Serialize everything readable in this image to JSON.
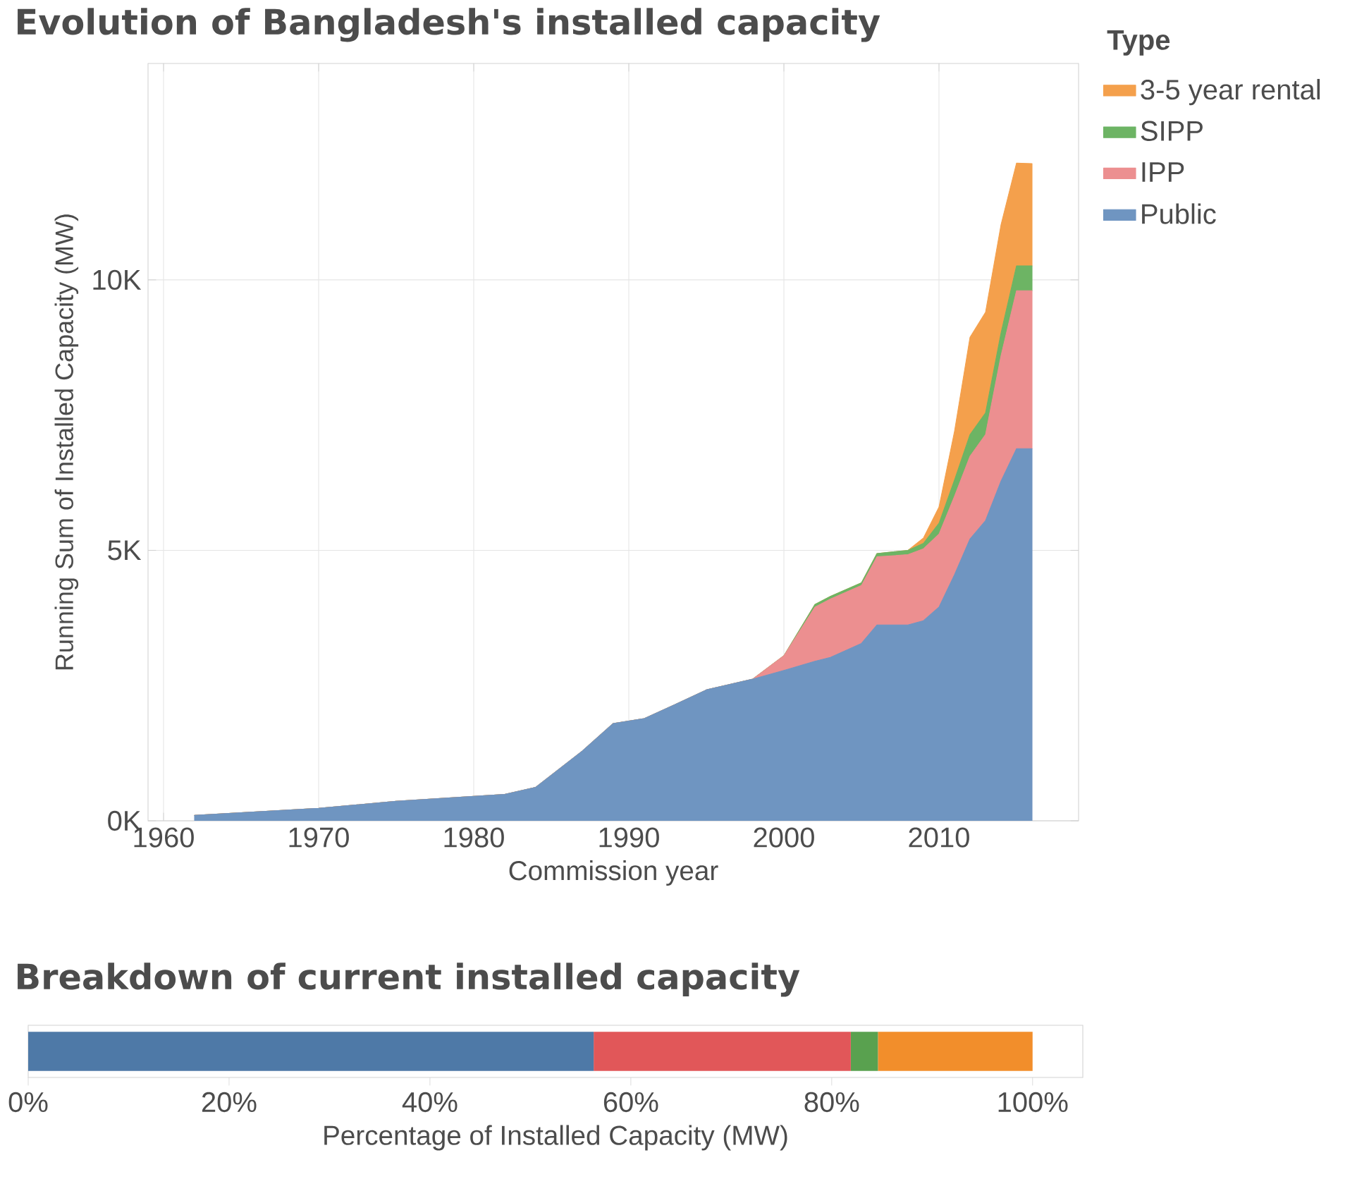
{
  "chart_data": [
    {
      "type": "area",
      "stacked": true,
      "title": "Evolution of Bangladesh's installed capacity",
      "xlabel": "Commission year",
      "ylabel": "Running Sum of Installed Capacity (MW)",
      "legend_title": "Type",
      "legend": "right",
      "grid": true,
      "x": [
        1962,
        1970,
        1975,
        1982,
        1984,
        1987,
        1989,
        1991,
        1993,
        1995,
        1998,
        2000,
        2002,
        2003,
        2005,
        2006,
        2008,
        2009,
        2010,
        2011,
        2012,
        2013,
        2014,
        2015,
        2016
      ],
      "series": [
        {
          "name": "Public",
          "color": "#6f95c1",
          "values": [
            100,
            230,
            360,
            490,
            620,
            1290,
            1800,
            1890,
            2150,
            2420,
            2620,
            2780,
            2950,
            3020,
            3280,
            3620,
            3620,
            3700,
            3950,
            4550,
            5210,
            5550,
            6280,
            6880,
            6880
          ]
        },
        {
          "name": "IPP",
          "color": "#ec8f90",
          "values": [
            0,
            0,
            0,
            0,
            0,
            0,
            0,
            0,
            0,
            0,
            0,
            270,
            1000,
            1080,
            1070,
            1260,
            1300,
            1330,
            1350,
            1450,
            1530,
            1590,
            2320,
            2920,
            2920
          ]
        },
        {
          "name": "SIPP",
          "color": "#6db464",
          "values": [
            0,
            0,
            0,
            0,
            0,
            0,
            0,
            0,
            0,
            0,
            0,
            0,
            50,
            50,
            50,
            60,
            80,
            100,
            200,
            300,
            400,
            400,
            420,
            460,
            460
          ]
        },
        {
          "name": "3-5 year rental",
          "color": "#f4a04c",
          "values": [
            0,
            0,
            0,
            0,
            0,
            0,
            0,
            0,
            0,
            0,
            0,
            0,
            0,
            0,
            0,
            0,
            0,
            100,
            300,
            900,
            1800,
            1860,
            2000,
            1900,
            1890
          ]
        }
      ],
      "xlim": [
        1959,
        2019
      ],
      "ylim": [
        0,
        14000
      ],
      "xticks": [
        1960,
        1970,
        1980,
        1990,
        2000,
        2010
      ],
      "yticks": [
        {
          "value": 0,
          "label": "0K"
        },
        {
          "value": 5000,
          "label": "5K"
        },
        {
          "value": 10000,
          "label": "10K"
        }
      ]
    },
    {
      "type": "bar",
      "orientation": "horizontal",
      "stacked": true,
      "title": "Breakdown of current installed capacity",
      "xlabel": "Percentage of Installed Capacity (MW)",
      "categories": [
        null
      ],
      "series": [
        {
          "color": "#4e79a7",
          "values": [
            56.3
          ]
        },
        {
          "color": "#e15759",
          "values": [
            25.6
          ]
        },
        {
          "color": "#59a14f",
          "values": [
            2.7
          ]
        },
        {
          "color": "#f28e2b",
          "values": [
            15.4
          ]
        }
      ],
      "xlim": [
        0,
        105
      ],
      "xticks": [
        {
          "value": 0,
          "label": "0%"
        },
        {
          "value": 20,
          "label": "20%"
        },
        {
          "value": 40,
          "label": "40%"
        },
        {
          "value": 60,
          "label": "60%"
        },
        {
          "value": 80,
          "label": "80%"
        },
        {
          "value": 100,
          "label": "100%"
        }
      ]
    }
  ]
}
